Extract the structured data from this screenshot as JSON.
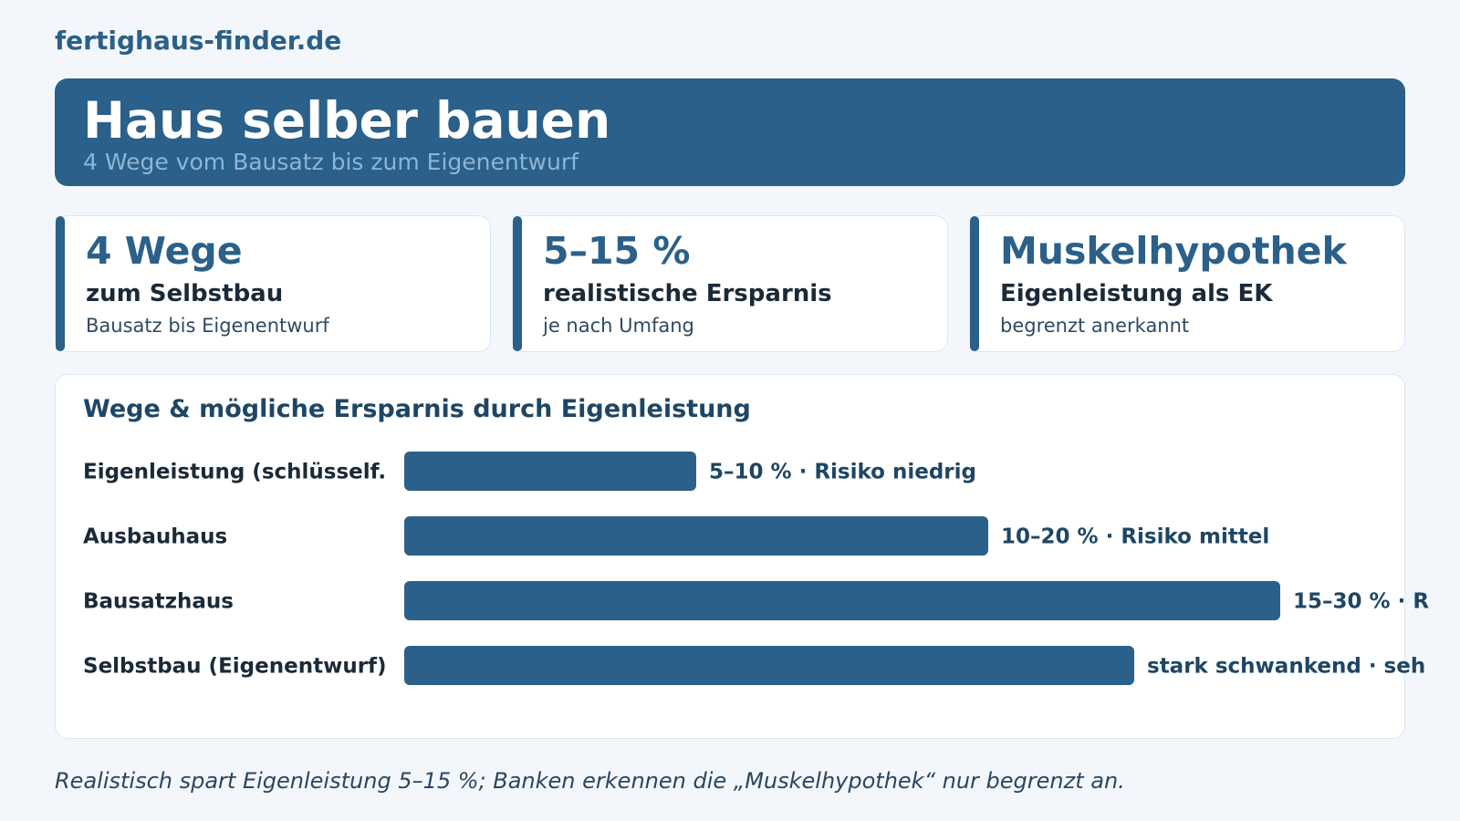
{
  "brand": "fertighaus-finder.de",
  "hero": {
    "title": "Haus selber bauen",
    "subtitle": "4 Wege vom Bausatz bis zum Eigenentwurf"
  },
  "stats": [
    {
      "big": "4 Wege",
      "label": "zum Selbstbau",
      "note": "Bausatz bis Eigenentwurf"
    },
    {
      "big": "5–15 %",
      "label": "realistische Ersparnis",
      "note": "je nach Umfang"
    },
    {
      "big": "Muskelhypothek",
      "label": "Eigenleistung als EK",
      "note": "begrenzt anerkannt"
    }
  ],
  "chart_data": {
    "type": "bar",
    "orientation": "horizontal",
    "title": "Wege & mögliche Ersparnis durch Eigenleistung",
    "categories": [
      "Eigenleistung (schlüsself.",
      "Ausbauhaus",
      "Bausatzhaus",
      "Selbstbau (Eigenentwurf)"
    ],
    "values": [
      10,
      20,
      30,
      25
    ],
    "value_labels": [
      "5–10 % · Risiko niedrig",
      "10–20 % · Risiko mittel",
      "15–30 % · R",
      "stark schwankend · seh"
    ],
    "xlim": [
      0,
      30
    ],
    "bar_color": "#2a6089",
    "grid": false,
    "legend": "none"
  },
  "footnote": "Realistisch spart Eigenleistung 5–15 %; Banken erkennen die „Muskelhypothek“ nur begrenzt an."
}
